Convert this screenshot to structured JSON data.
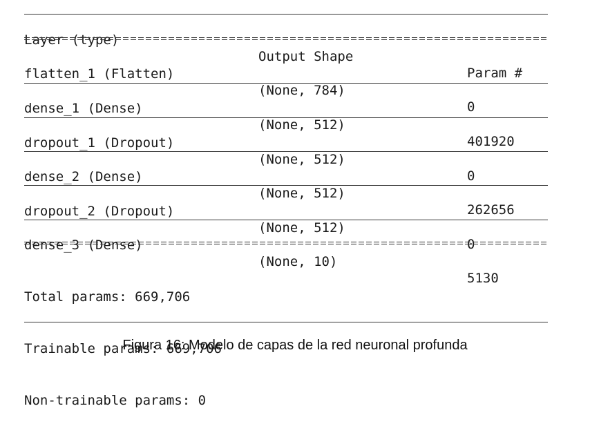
{
  "header": {
    "layer": "Layer (type)",
    "output_shape": "Output Shape",
    "params": "Param #"
  },
  "layers": [
    {
      "layer": "flatten_1 (Flatten)",
      "output_shape": "(None, 784)",
      "params": "0"
    },
    {
      "layer": "dense_1 (Dense)",
      "output_shape": "(None, 512)",
      "params": "401920"
    },
    {
      "layer": "dropout_1 (Dropout)",
      "output_shape": "(None, 512)",
      "params": "0"
    },
    {
      "layer": "dense_2 (Dense)",
      "output_shape": "(None, 512)",
      "params": "262656"
    },
    {
      "layer": "dropout_2 (Dropout)",
      "output_shape": "(None, 512)",
      "params": "0"
    },
    {
      "layer": "dense_3 (Dense)",
      "output_shape": "(None, 10)",
      "params": "5130"
    }
  ],
  "totals": {
    "total": "Total params: 669,706",
    "trainable": "Trainable params: 669,706",
    "non_trainable": "Non-trainable params: 0"
  },
  "caption": "Figura 16: Modelo de capas de la red neuronal profunda"
}
